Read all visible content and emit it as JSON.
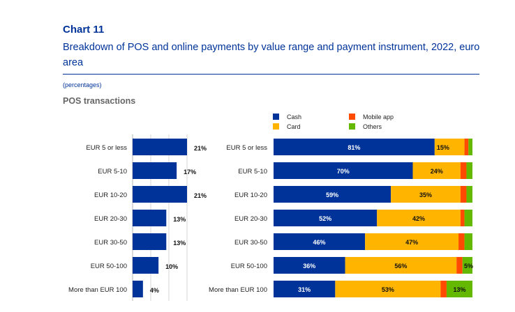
{
  "header": {
    "chart_number": "Chart 11",
    "title": "Breakdown of POS and online payments by value range and payment instrument, 2022, euro area",
    "units": "(percentages)",
    "subtitle": "POS transactions"
  },
  "colors": {
    "cash": "#003399",
    "card": "#ffb400",
    "mobile_app": "#ff4b00",
    "others": "#65b800"
  },
  "chart_data": [
    {
      "type": "bar",
      "orientation": "horizontal",
      "title": "POS transactions",
      "categories": [
        "EUR 5 or less",
        "EUR 5-10",
        "EUR 10-20",
        "EUR 20-30",
        "EUR 30-50",
        "EUR 50-100",
        "More than EUR 100"
      ],
      "values": [
        21,
        17,
        21,
        13,
        13,
        10,
        4
      ],
      "labels": [
        "21%",
        "17%",
        "21%",
        "13%",
        "13%",
        "10%",
        "4%"
      ],
      "unit": "%",
      "xlim": [
        0,
        28
      ],
      "grid": true
    },
    {
      "type": "bar",
      "orientation": "horizontal",
      "stacked": true,
      "categories": [
        "EUR 5 or less",
        "EUR 5-10",
        "EUR 10-20",
        "EUR 20-30",
        "EUR 30-50",
        "EUR 50-100",
        "More than EUR 100"
      ],
      "legend": [
        "Cash",
        "Card",
        "Mobile app",
        "Others"
      ],
      "legend_position": "top",
      "series": [
        {
          "name": "Cash",
          "key": "cash",
          "values": [
            81,
            70,
            59,
            52,
            46,
            36,
            31
          ],
          "labels": [
            "81%",
            "70%",
            "59%",
            "52%",
            "46%",
            "36%",
            "31%"
          ]
        },
        {
          "name": "Card",
          "key": "card",
          "values": [
            15,
            24,
            35,
            42,
            47,
            56,
            53
          ],
          "labels": [
            "15%",
            "24%",
            "35%",
            "42%",
            "47%",
            "56%",
            "53%"
          ]
        },
        {
          "name": "Mobile app",
          "key": "mobile_app",
          "values": [
            2,
            3,
            3,
            2,
            3,
            3,
            3
          ],
          "labels": [
            "",
            "",
            "",
            "",
            "",
            "",
            ""
          ]
        },
        {
          "name": "Others",
          "key": "others",
          "values": [
            2,
            3,
            3,
            4,
            4,
            5,
            13
          ],
          "labels": [
            "",
            "",
            "",
            "",
            "",
            "5%",
            "13%"
          ]
        }
      ],
      "xlim": [
        0,
        100
      ]
    }
  ]
}
